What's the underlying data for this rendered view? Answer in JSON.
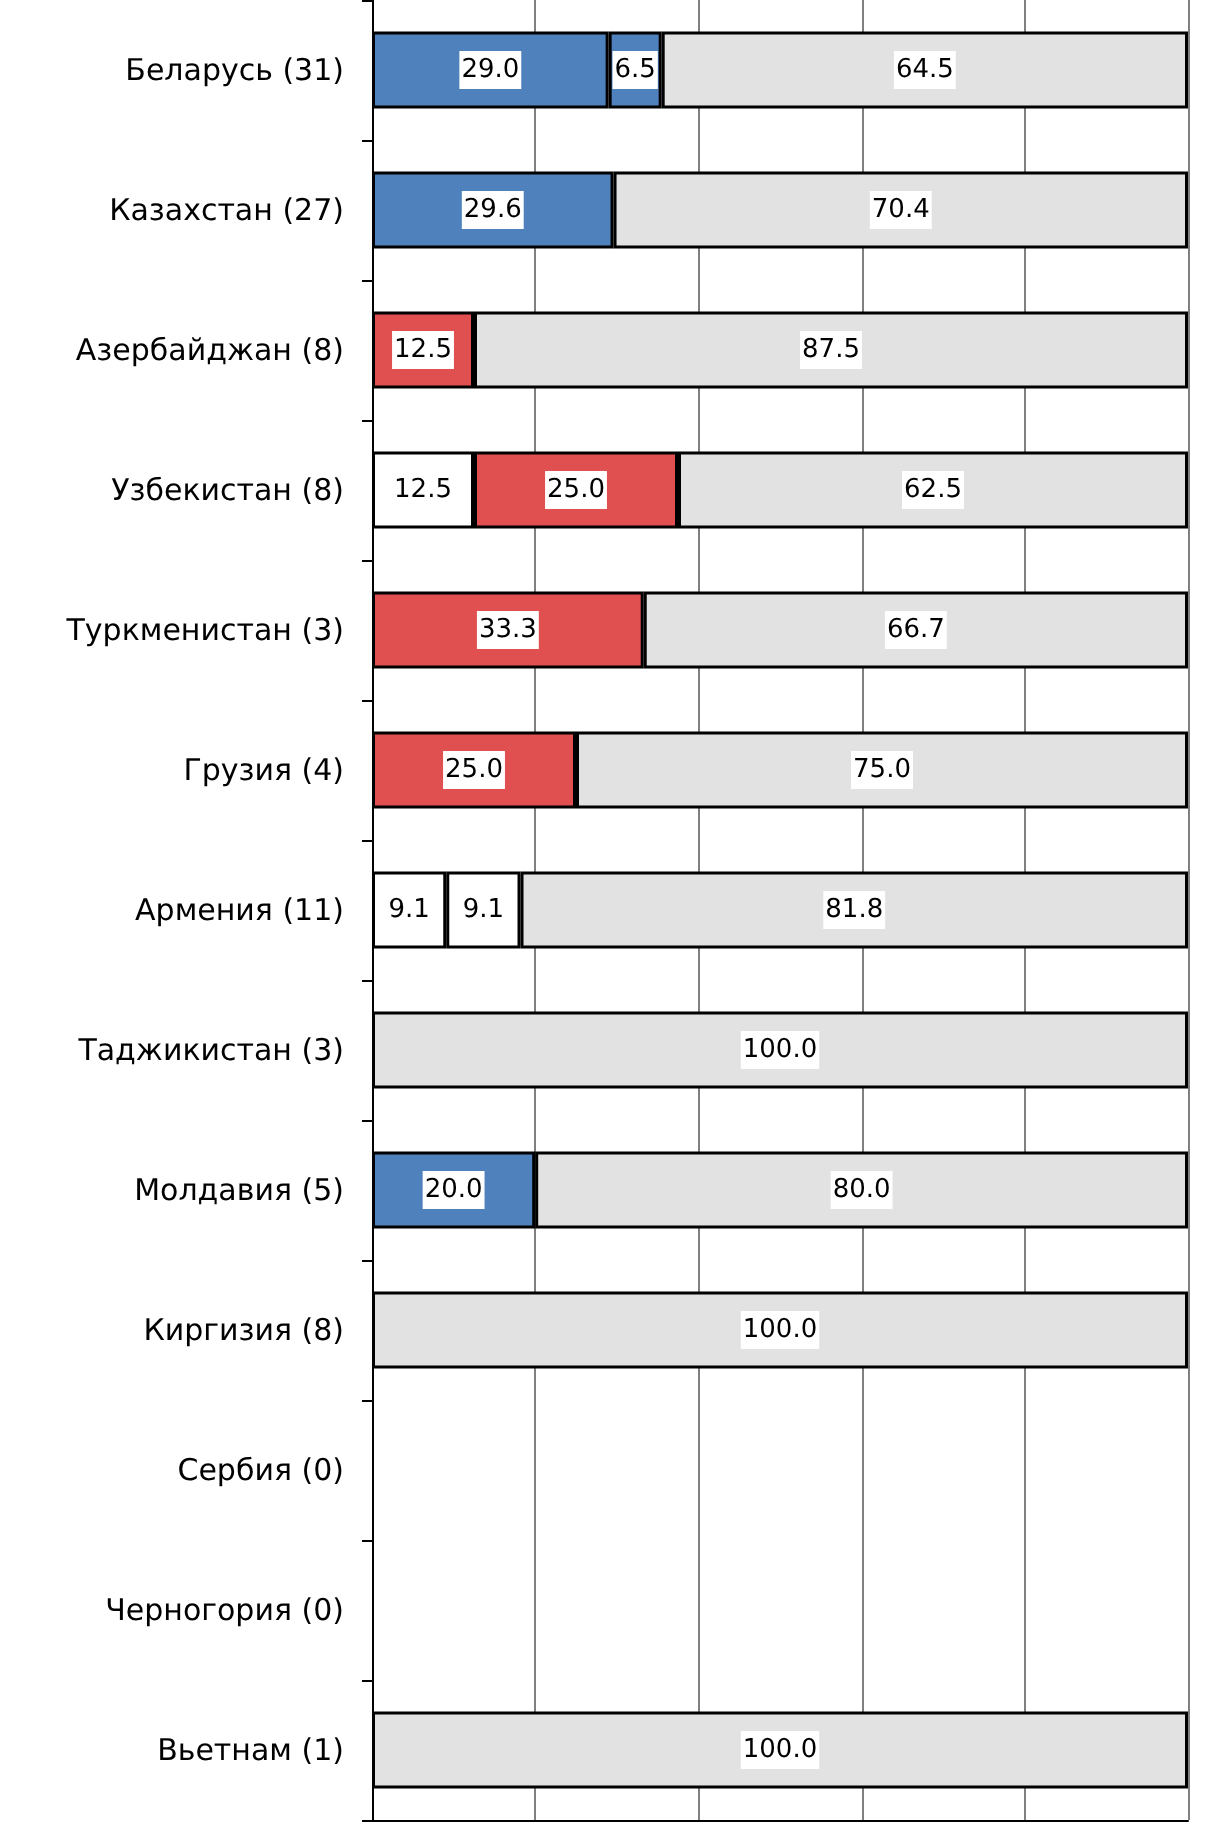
{
  "chart_data": {
    "type": "bar",
    "orientation": "horizontal",
    "stacked": true,
    "tick_labels": "y",
    "grid": "x",
    "categories": [
      "Беларусь (31)",
      "Казахстан (27)",
      "Азербайджан (8)",
      "Узбекистан (8)",
      "Туркменистан (3)",
      "Грузия (4)",
      "Армения (11)",
      "Таджикистан (3)",
      "Молдавия (5)",
      "Киргизия (8)",
      "Сербия (0)",
      "Черногория (0)",
      "Вьетнам (1)"
    ],
    "xlim": [
      0,
      100
    ],
    "xticks": [
      {
        "value": 0,
        "label": null
      },
      {
        "value": 20,
        "label": null
      },
      {
        "value": 40,
        "label": null
      },
      {
        "value": 60,
        "label": null
      },
      {
        "value": 80,
        "label": null
      },
      {
        "value": 100,
        "label": null
      }
    ],
    "series": [
      {
        "color": "#4f81bd",
        "values": [
          29.0,
          29.6,
          null,
          null,
          null,
          null,
          null,
          null,
          20.0,
          null,
          null,
          null,
          null
        ],
        "value_labels": [
          "29.0",
          "29.6",
          null,
          null,
          null,
          null,
          null,
          null,
          "20.0",
          null,
          null,
          null,
          null
        ]
      },
      {
        "color": "#4f81bd",
        "values": [
          6.5,
          null,
          null,
          null,
          null,
          null,
          null,
          null,
          null,
          null,
          null,
          null,
          null
        ],
        "value_labels": [
          "6.5",
          null,
          null,
          null,
          null,
          null,
          null,
          null,
          null,
          null,
          null,
          null,
          null
        ]
      },
      {
        "color": "#ffffff",
        "values": [
          null,
          null,
          null,
          12.5,
          null,
          null,
          9.1,
          null,
          null,
          null,
          null,
          null,
          null
        ],
        "value_labels": [
          null,
          null,
          null,
          "12.5",
          null,
          null,
          "9.1",
          null,
          null,
          null,
          null,
          null,
          null
        ]
      },
      {
        "color": "#e05050",
        "values": [
          null,
          null,
          12.5,
          25.0,
          33.3,
          25.0,
          null,
          null,
          null,
          null,
          null,
          null,
          null
        ],
        "value_labels": [
          null,
          null,
          "12.5",
          "25.0",
          "33.3",
          "25.0",
          null,
          null,
          null,
          null,
          null,
          null,
          null
        ]
      },
      {
        "color": "#ffffff",
        "values": [
          null,
          null,
          null,
          null,
          null,
          null,
          9.1,
          null,
          null,
          null,
          null,
          null,
          null
        ],
        "value_labels": [
          null,
          null,
          null,
          null,
          null,
          null,
          "9.1",
          null,
          null,
          null,
          null,
          null,
          null
        ]
      },
      {
        "color": "#e2e2e2",
        "values": [
          64.5,
          70.4,
          87.5,
          62.5,
          66.7,
          75.0,
          81.8,
          100,
          80.0,
          100,
          null,
          null,
          100
        ],
        "value_labels": [
          "64.5",
          "70.4",
          "87.5",
          "62.5",
          "66.7",
          "75.0",
          "81.8",
          "100.0",
          "80.0",
          "100.0",
          null,
          null,
          "100.0"
        ]
      }
    ]
  }
}
